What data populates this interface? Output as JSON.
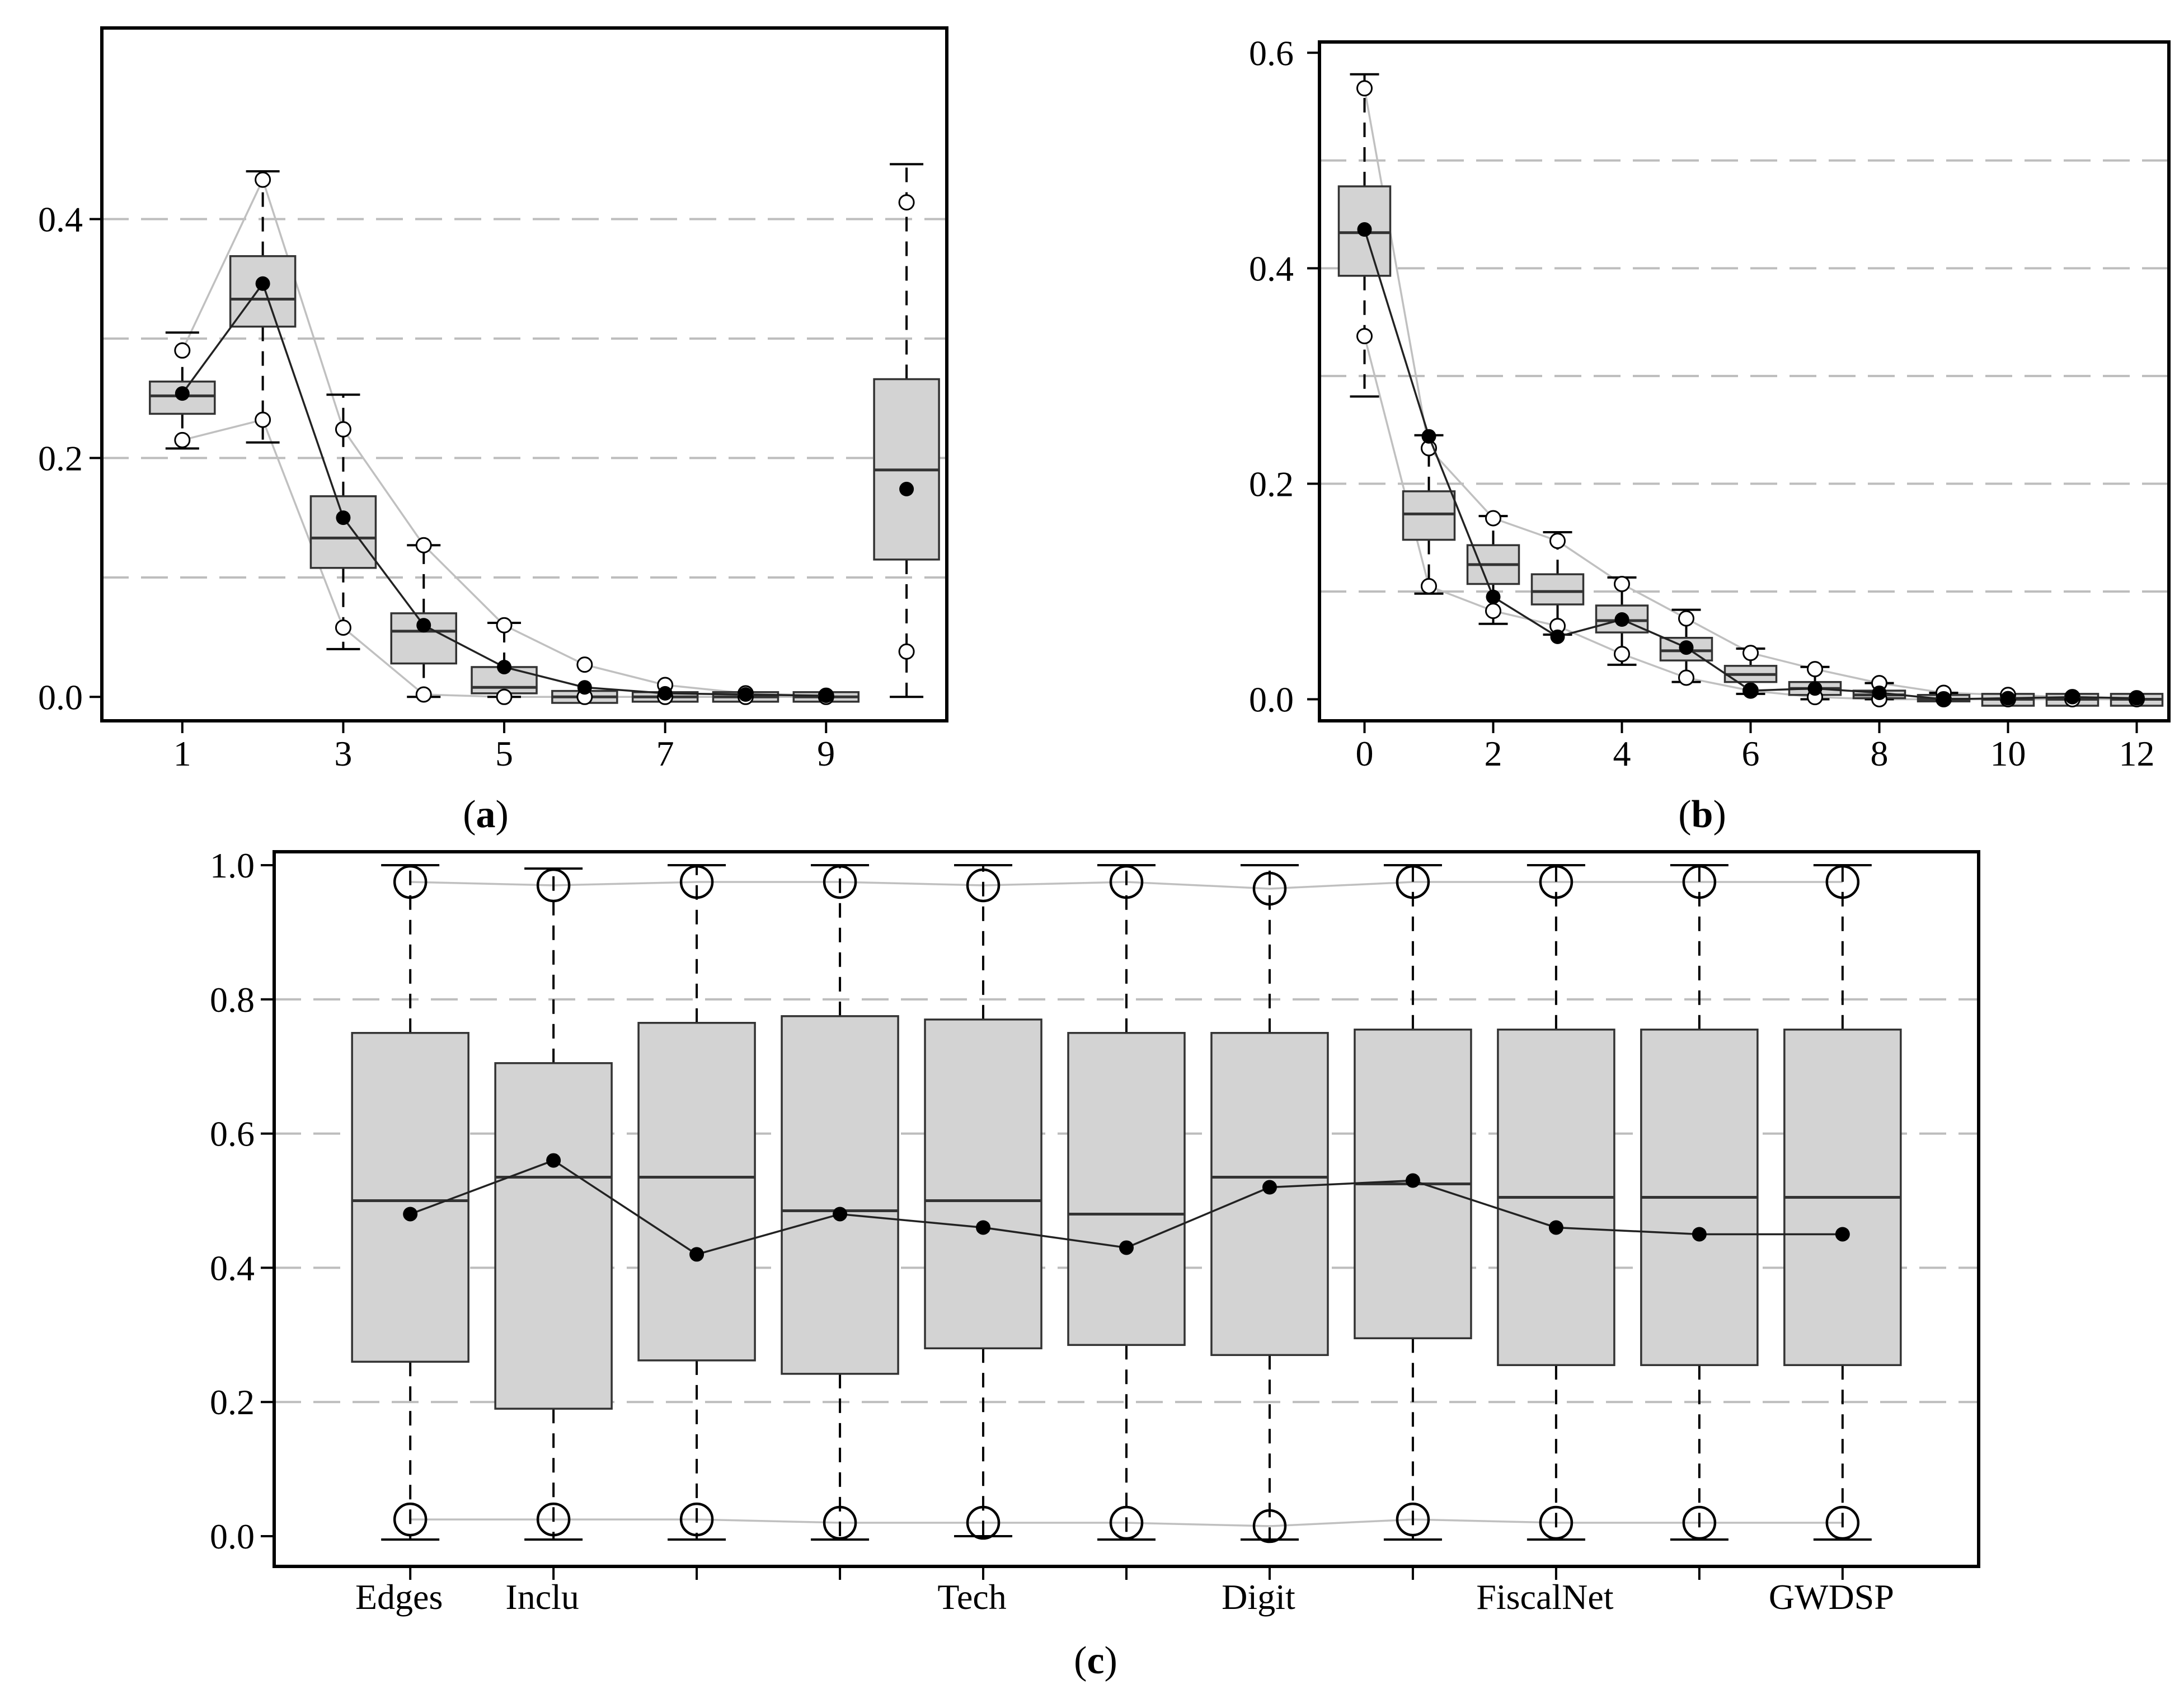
{
  "colors": {
    "box_fill": "#d3d3d3",
    "envelope": "#c0c0c0",
    "grid": "#bdbdbd",
    "ink": "#000000"
  },
  "chart_data": [
    {
      "id": "a",
      "type": "box",
      "panel_label": "a",
      "ylim": [
        -0.02,
        0.56
      ],
      "xlim": [
        0.0,
        10.5
      ],
      "yticks": [
        0.0,
        0.2,
        0.4
      ],
      "yticks_labels": [
        "0.0",
        "0.2",
        "0.4"
      ],
      "grid_y": [
        0.1,
        0.2,
        0.3,
        0.4
      ],
      "xticks": [
        1,
        3,
        5,
        7,
        9
      ],
      "xticks_labels": [
        "1",
        "3",
        "5",
        "7",
        "9"
      ],
      "boxes": [
        {
          "x": 1,
          "q1": 0.237,
          "median": 0.252,
          "q3": 0.264,
          "wlo": 0.208,
          "whi": 0.305
        },
        {
          "x": 2,
          "q1": 0.31,
          "median": 0.333,
          "q3": 0.369,
          "wlo": 0.213,
          "whi": 0.44
        },
        {
          "x": 3,
          "q1": 0.108,
          "median": 0.133,
          "q3": 0.168,
          "wlo": 0.04,
          "whi": 0.253
        },
        {
          "x": 4,
          "q1": 0.028,
          "median": 0.055,
          "q3": 0.07,
          "wlo": 0.0,
          "whi": 0.127
        },
        {
          "x": 5,
          "q1": 0.003,
          "median": 0.008,
          "q3": 0.025,
          "wlo": 0.0,
          "whi": 0.062
        },
        {
          "x": 6,
          "q1": -0.005,
          "median": 0.0,
          "q3": 0.005,
          "wlo": 0.0,
          "whi": 0.0
        },
        {
          "x": 7,
          "q1": -0.004,
          "median": 0.0,
          "q3": 0.004,
          "wlo": 0.0,
          "whi": 0.0
        },
        {
          "x": 8,
          "q1": -0.004,
          "median": 0.0,
          "q3": 0.004,
          "wlo": 0.0,
          "whi": 0.0
        },
        {
          "x": 9,
          "q1": -0.004,
          "median": 0.0,
          "q3": 0.004,
          "wlo": 0.0,
          "whi": 0.0
        },
        {
          "x": 10,
          "q1": 0.115,
          "median": 0.19,
          "q3": 0.266,
          "wlo": 0.0,
          "whi": 0.446
        }
      ],
      "mean_line": {
        "x": [
          1,
          2,
          3,
          4,
          5,
          6,
          7,
          8,
          9
        ],
        "y": [
          0.254,
          0.346,
          0.15,
          0.06,
          0.025,
          0.008,
          0.003,
          0.002,
          0.001
        ]
      },
      "extra_mean": {
        "x": 10,
        "y": 0.174
      },
      "upper_envelope": {
        "x": [
          1,
          2,
          3,
          4,
          5,
          6,
          7,
          8,
          9
        ],
        "y": [
          0.29,
          0.433,
          0.224,
          0.127,
          0.06,
          0.027,
          0.01,
          0.003,
          0.001
        ]
      },
      "lower_envelope": {
        "x": [
          1,
          2,
          3,
          4,
          5,
          6,
          7,
          8,
          9
        ],
        "y": [
          0.215,
          0.232,
          0.058,
          0.002,
          0.0,
          0.0,
          0.0,
          0.0,
          0.0
        ]
      },
      "extra_circles": [
        {
          "x": 10,
          "y": 0.414
        },
        {
          "x": 10,
          "y": 0.038
        }
      ]
    },
    {
      "id": "b",
      "type": "box",
      "panel_label": "b",
      "ylim": [
        -0.02,
        0.61
      ],
      "xlim": [
        -0.7,
        12.5
      ],
      "yticks": [
        0.0,
        0.2,
        0.4,
        0.6
      ],
      "yticks_labels": [
        "0.0",
        "0.2",
        "0.4",
        "0.6"
      ],
      "grid_y": [
        0.1,
        0.2,
        0.3,
        0.4,
        0.5
      ],
      "xticks": [
        0,
        2,
        4,
        6,
        8,
        10,
        12
      ],
      "xticks_labels": [
        "0",
        "2",
        "4",
        "6",
        "8",
        "10",
        "12"
      ],
      "boxes": [
        {
          "x": 0,
          "q1": 0.393,
          "median": 0.433,
          "q3": 0.476,
          "wlo": 0.281,
          "whi": 0.58
        },
        {
          "x": 1,
          "q1": 0.148,
          "median": 0.172,
          "q3": 0.193,
          "wlo": 0.098,
          "whi": 0.245
        },
        {
          "x": 2,
          "q1": 0.107,
          "median": 0.125,
          "q3": 0.143,
          "wlo": 0.07,
          "whi": 0.17
        },
        {
          "x": 3,
          "q1": 0.088,
          "median": 0.1,
          "q3": 0.116,
          "wlo": 0.06,
          "whi": 0.155
        },
        {
          "x": 4,
          "q1": 0.062,
          "median": 0.073,
          "q3": 0.087,
          "wlo": 0.032,
          "whi": 0.113
        },
        {
          "x": 5,
          "q1": 0.036,
          "median": 0.045,
          "q3": 0.057,
          "wlo": 0.016,
          "whi": 0.083
        },
        {
          "x": 6,
          "q1": 0.016,
          "median": 0.023,
          "q3": 0.031,
          "wlo": 0.005,
          "whi": 0.047
        },
        {
          "x": 7,
          "q1": 0.004,
          "median": 0.01,
          "q3": 0.016,
          "wlo": 0.0,
          "whi": 0.03
        },
        {
          "x": 8,
          "q1": 0.001,
          "median": 0.004,
          "q3": 0.008,
          "wlo": 0.0,
          "whi": 0.015
        },
        {
          "x": 9,
          "q1": -0.002,
          "median": 0.0,
          "q3": 0.004,
          "wlo": 0.0,
          "whi": 0.006
        },
        {
          "x": 10,
          "q1": -0.006,
          "median": 0.0,
          "q3": 0.005,
          "wlo": 0.0,
          "whi": 0.004
        },
        {
          "x": 11,
          "q1": -0.006,
          "median": 0.0,
          "q3": 0.005,
          "wlo": 0.0,
          "whi": 0.003
        },
        {
          "x": 12,
          "q1": -0.006,
          "median": 0.0,
          "q3": 0.005,
          "wlo": 0.0,
          "whi": 0.002
        }
      ],
      "mean_line": {
        "x": [
          0,
          1,
          2,
          3,
          4,
          5,
          6,
          7,
          8,
          9,
          10,
          11,
          12
        ],
        "y": [
          0.436,
          0.244,
          0.095,
          0.058,
          0.074,
          0.048,
          0.008,
          0.01,
          0.006,
          0.0,
          0.001,
          0.002,
          0.001
        ]
      },
      "upper_envelope": {
        "x": [
          0,
          1,
          2,
          3,
          4,
          5,
          6,
          7,
          8,
          9,
          10,
          11,
          12
        ],
        "y": [
          0.567,
          0.233,
          0.168,
          0.147,
          0.107,
          0.075,
          0.043,
          0.028,
          0.015,
          0.006,
          0.004,
          0.002,
          0.001
        ]
      },
      "lower_envelope": {
        "x": [
          0,
          1,
          2,
          3,
          4,
          5,
          6,
          7,
          8,
          9,
          10,
          11,
          12
        ],
        "y": [
          0.337,
          0.105,
          0.082,
          0.068,
          0.042,
          0.02,
          0.008,
          0.002,
          0.0,
          0.0,
          0.0,
          0.0,
          0.0
        ]
      }
    },
    {
      "id": "c",
      "type": "box",
      "panel_label": "c",
      "ylim": [
        -0.045,
        1.02
      ],
      "xlim": [
        0.05,
        11.95
      ],
      "yticks": [
        0.0,
        0.2,
        0.4,
        0.6,
        0.8,
        1.0
      ],
      "yticks_labels": [
        "0.0",
        "0.2",
        "0.4",
        "0.6",
        "0.8",
        "1.0"
      ],
      "grid_y": [
        0.2,
        0.4,
        0.6,
        0.8
      ],
      "categories": [
        "Edges",
        "Inclu",
        "",
        "",
        "Tech",
        "",
        "Digit",
        "",
        "FiscalNet",
        "",
        "GWDSP"
      ],
      "boxes": [
        {
          "x": 1,
          "q1": 0.26,
          "median": 0.5,
          "q3": 0.75,
          "wlo": -0.005,
          "whi": 1.0
        },
        {
          "x": 2,
          "q1": 0.19,
          "median": 0.535,
          "q3": 0.705,
          "wlo": -0.005,
          "whi": 0.995
        },
        {
          "x": 3,
          "q1": 0.262,
          "median": 0.535,
          "q3": 0.765,
          "wlo": -0.005,
          "whi": 1.0
        },
        {
          "x": 4,
          "q1": 0.242,
          "median": 0.485,
          "q3": 0.775,
          "wlo": -0.005,
          "whi": 1.0
        },
        {
          "x": 5,
          "q1": 0.28,
          "median": 0.5,
          "q3": 0.77,
          "wlo": 0.0,
          "whi": 1.0
        },
        {
          "x": 6,
          "q1": 0.285,
          "median": 0.48,
          "q3": 0.75,
          "wlo": -0.005,
          "whi": 1.0
        },
        {
          "x": 7,
          "q1": 0.27,
          "median": 0.535,
          "q3": 0.75,
          "wlo": -0.005,
          "whi": 1.0
        },
        {
          "x": 8,
          "q1": 0.295,
          "median": 0.525,
          "q3": 0.755,
          "wlo": -0.005,
          "whi": 1.0
        },
        {
          "x": 9,
          "q1": 0.255,
          "median": 0.505,
          "q3": 0.755,
          "wlo": -0.005,
          "whi": 1.0
        },
        {
          "x": 10,
          "q1": 0.255,
          "median": 0.505,
          "q3": 0.755,
          "wlo": -0.005,
          "whi": 1.0
        },
        {
          "x": 11,
          "q1": 0.255,
          "median": 0.505,
          "q3": 0.755,
          "wlo": -0.005,
          "whi": 1.0
        }
      ],
      "mean_line": {
        "x": [
          1,
          2,
          3,
          4,
          5,
          6,
          7,
          8,
          9,
          10,
          11
        ],
        "y": [
          0.48,
          0.56,
          0.42,
          0.48,
          0.46,
          0.43,
          0.52,
          0.53,
          0.46,
          0.45,
          0.45
        ]
      },
      "upper_envelope": {
        "x": [
          1,
          2,
          3,
          4,
          5,
          6,
          7,
          8,
          9,
          10,
          11
        ],
        "y": [
          0.975,
          0.97,
          0.975,
          0.975,
          0.97,
          0.975,
          0.965,
          0.975,
          0.975,
          0.975,
          0.975
        ]
      },
      "lower_envelope": {
        "x": [
          1,
          2,
          3,
          4,
          5,
          6,
          7,
          8,
          9,
          10,
          11
        ],
        "y": [
          0.025,
          0.025,
          0.025,
          0.02,
          0.02,
          0.02,
          0.015,
          0.025,
          0.02,
          0.02,
          0.02
        ]
      }
    }
  ]
}
